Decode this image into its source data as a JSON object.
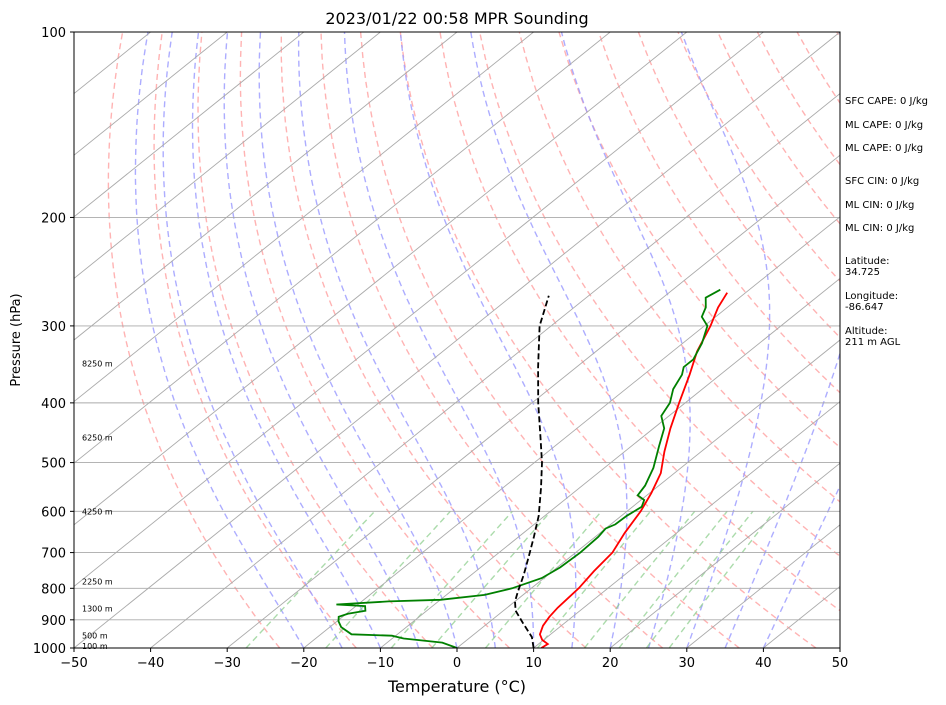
{
  "chart_data": {
    "type": "line",
    "title": "2023/01/22 00:58 MPR Sounding",
    "xlabel": "Temperature (°C)",
    "ylabel": "Pressure (hPa)",
    "xlim": [
      -50,
      50
    ],
    "ylim": [
      1000,
      100
    ],
    "yscale": "log",
    "x_ticks": [
      "−50",
      "−40",
      "−30",
      "−20",
      "−10",
      "0",
      "10",
      "20",
      "30",
      "40",
      "50"
    ],
    "y_ticks": [
      {
        "p": 100,
        "label": "100"
      },
      {
        "p": 200,
        "label": "200"
      },
      {
        "p": 300,
        "label": "300"
      },
      {
        "p": 400,
        "label": "400"
      },
      {
        "p": 500,
        "label": "500"
      },
      {
        "p": 600,
        "label": "600"
      },
      {
        "p": 700,
        "label": "700"
      },
      {
        "p": 800,
        "label": "800"
      },
      {
        "p": 900,
        "label": "900"
      },
      {
        "p": 1000,
        "label": "1000"
      }
    ],
    "height_labels": [
      {
        "p": 345,
        "label": "8250 m"
      },
      {
        "p": 455,
        "label": "6250 m"
      },
      {
        "p": 600,
        "label": "4250 m"
      },
      {
        "p": 780,
        "label": "2250 m"
      },
      {
        "p": 862,
        "label": "1300 m"
      },
      {
        "p": 955,
        "label": "500 m"
      },
      {
        "p": 992,
        "label": "100 m"
      }
    ],
    "series": [
      {
        "color": "#ff0000",
        "style": "solid",
        "points": [
          [
            11,
            1000
          ],
          [
            11.2,
            985
          ],
          [
            9.8,
            970
          ],
          [
            8.6,
            950
          ],
          [
            7.6,
            920
          ],
          [
            7,
            890
          ],
          [
            6.6,
            860
          ],
          [
            6.4,
            830
          ],
          [
            6.2,
            800
          ],
          [
            5.4,
            750
          ],
          [
            4.8,
            700
          ],
          [
            3.2,
            650
          ],
          [
            1.8,
            600
          ],
          [
            0.2,
            560
          ],
          [
            -1.8,
            520
          ],
          [
            -4.8,
            480
          ],
          [
            -7.8,
            440
          ],
          [
            -10.8,
            400
          ],
          [
            -14,
            360
          ],
          [
            -16.8,
            330
          ],
          [
            -19.2,
            300
          ],
          [
            -21.2,
            280
          ],
          [
            -22.4,
            265
          ]
        ]
      },
      {
        "color": "#008000",
        "style": "solid",
        "points": [
          [
            0,
            1000
          ],
          [
            -2.8,
            980
          ],
          [
            -6.6,
            970
          ],
          [
            -8.5,
            965
          ],
          [
            -10.5,
            955
          ],
          [
            -16,
            950
          ],
          [
            -18.5,
            925
          ],
          [
            -19.8,
            905
          ],
          [
            -20.5,
            890
          ],
          [
            -19.8,
            880
          ],
          [
            -18,
            870
          ],
          [
            -18.8,
            855
          ],
          [
            -22.8,
            850
          ],
          [
            -16.5,
            840
          ],
          [
            -10,
            835
          ],
          [
            -5,
            820
          ],
          [
            -2.5,
            800
          ],
          [
            -0.3,
            770
          ],
          [
            0.4,
            740
          ],
          [
            0.6,
            700
          ],
          [
            0.4,
            660
          ],
          [
            0,
            640
          ],
          [
            0.6,
            630
          ],
          [
            0.7,
            610
          ],
          [
            1.2,
            590
          ],
          [
            0.4,
            575
          ],
          [
            -1.2,
            565
          ],
          [
            -1.8,
            545
          ],
          [
            -3.6,
            510
          ],
          [
            -6.4,
            470
          ],
          [
            -8.6,
            440
          ],
          [
            -11,
            420
          ],
          [
            -12,
            400
          ],
          [
            -13.8,
            380
          ],
          [
            -15,
            360
          ],
          [
            -16,
            350
          ],
          [
            -16,
            340
          ],
          [
            -17.5,
            320
          ],
          [
            -19.6,
            300
          ],
          [
            -21.8,
            290
          ],
          [
            -22.8,
            280
          ],
          [
            -24.4,
            270
          ],
          [
            -23.8,
            262
          ]
        ]
      },
      {
        "color": "#000000",
        "style": "dashed",
        "points": [
          [
            10,
            1000
          ],
          [
            8,
            960
          ],
          [
            4.5,
            910
          ],
          [
            1.6,
            870
          ],
          [
            0,
            840
          ],
          [
            -1.2,
            810
          ],
          [
            -3.2,
            760
          ],
          [
            -5.5,
            710
          ],
          [
            -8,
            660
          ],
          [
            -10.8,
            610
          ],
          [
            -15,
            550
          ],
          [
            -19,
            500
          ],
          [
            -23.8,
            450
          ],
          [
            -29.2,
            400
          ],
          [
            -35,
            350
          ],
          [
            -41.5,
            300
          ],
          [
            -45.2,
            268
          ]
        ]
      }
    ],
    "isotherms_every_c": 10,
    "isobars_hpa": [
      200,
      300,
      400,
      500,
      600,
      700,
      800,
      900
    ],
    "indices": [
      {
        "label": "SFC CAPE: 0 J/kg"
      },
      {
        "label": "ML CAPE: 0 J/kg"
      },
      {
        "label": "ML CAPE: 0 J/kg"
      },
      {
        "label": "SFC CIN: 0 J/kg"
      },
      {
        "label": "ML CIN: 0 J/kg"
      },
      {
        "label": "ML CIN: 0 J/kg"
      }
    ],
    "location": [
      {
        "label": "Latitude:",
        "value": "34.725"
      },
      {
        "label": "Longitude:",
        "value": "-86.647"
      },
      {
        "label": "Altitude:",
        "value": "211 m AGL"
      }
    ],
    "colors": {
      "temperature": "#ff0000",
      "dewpoint": "#008000",
      "parcel": "#000000",
      "dry_adiabat": "#ff9999",
      "moist_adiabat": "#9999ff",
      "mixing_ratio": "#88cc88",
      "grid": "#aaaaaa"
    }
  }
}
